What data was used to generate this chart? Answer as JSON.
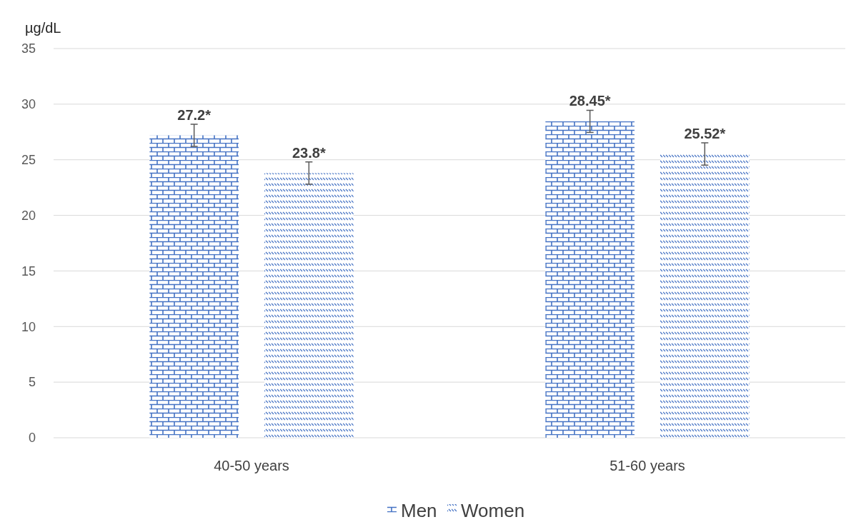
{
  "chart_data": {
    "type": "bar",
    "ylabel": "µg/dL",
    "categories": [
      "40-50 years",
      "51-60 years"
    ],
    "series": [
      {
        "name": "Men",
        "color": "#4472c4",
        "values": [
          27.2,
          28.45
        ],
        "errors": [
          1,
          1
        ],
        "value_labels": [
          "27.2*",
          "28.45*"
        ]
      },
      {
        "name": "Women",
        "color": "#4472c4",
        "values": [
          23.8,
          25.52
        ],
        "errors": [
          1,
          1
        ],
        "value_labels": [
          "23.8*",
          "25.52*"
        ]
      }
    ],
    "ylim": [
      0,
      35
    ],
    "yticks": [
      0,
      5,
      10,
      15,
      20,
      25,
      30,
      35
    ],
    "grid": "y",
    "legend": "bottom"
  }
}
